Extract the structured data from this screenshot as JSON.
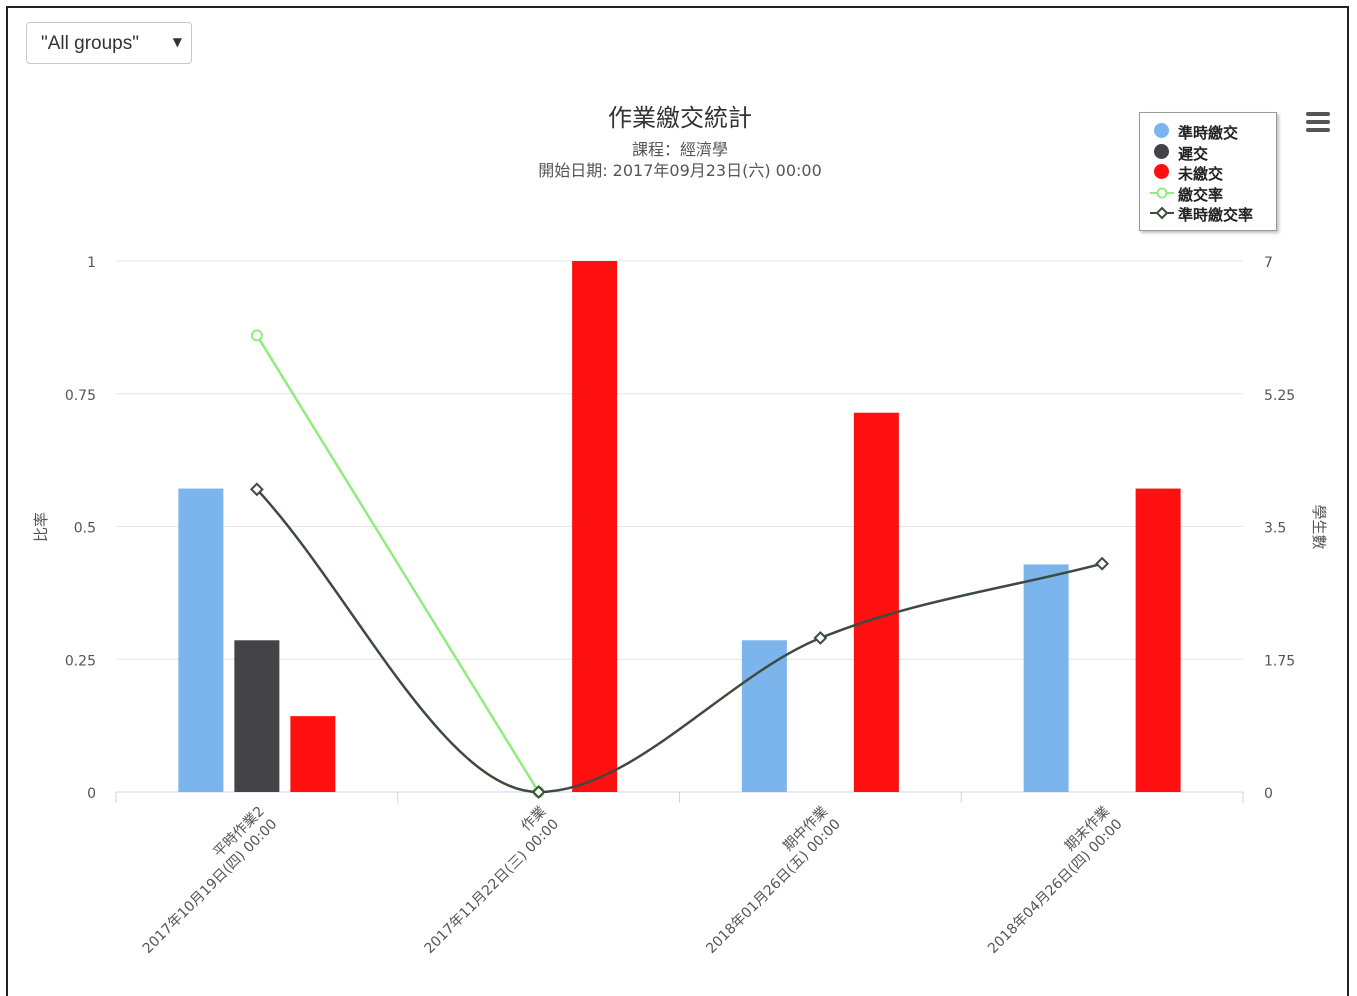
{
  "filter": {
    "selected": "\"All groups\""
  },
  "legend": {
    "items": [
      {
        "label": "準時繳交",
        "color": "#7cb5ec",
        "kind": "dot"
      },
      {
        "label": "遲交",
        "color": "#434348",
        "kind": "dot"
      },
      {
        "label": "未繳交",
        "color": "#ff1010",
        "kind": "dot"
      },
      {
        "label": "繳交率",
        "color": "#90ed7d",
        "kind": "line-circle"
      },
      {
        "label": "準時繳交率",
        "color": "#3d4a3d",
        "kind": "line-diamond"
      }
    ]
  },
  "menu": {
    "icon": "hamburger-menu-icon"
  },
  "chart_data": {
    "type": "bar",
    "title": "作業繳交統計",
    "subtitle_lines": [
      "課程：經濟學",
      "開始日期: 2017年09月23日(六) 00:00"
    ],
    "ylabel": "比率",
    "y2label": "學生數",
    "ylim": [
      0,
      1
    ],
    "y2lim": [
      0,
      7
    ],
    "yticks": [
      "0",
      "0.25",
      "0.5",
      "0.75",
      "1"
    ],
    "y2ticks": [
      "0",
      "1.75",
      "3.5",
      "5.25",
      "7"
    ],
    "categories": [
      {
        "name": "平時作業2",
        "date": "2017年10月19日(四) 00:00"
      },
      {
        "name": "作業",
        "date": "2017年11月22日(三) 00:00"
      },
      {
        "name": "期中作業",
        "date": "2018年01月26日(五) 00:00"
      },
      {
        "name": "期末作業",
        "date": "2018年04月26日(四) 00:00"
      }
    ],
    "series": [
      {
        "name": "準時繳交",
        "axis": "y2",
        "color": "#7cb5ec",
        "values": [
          4,
          0,
          2,
          3
        ]
      },
      {
        "name": "遲交",
        "axis": "y2",
        "color": "#434348",
        "values": [
          2,
          0,
          0,
          0
        ]
      },
      {
        "name": "未繳交",
        "axis": "y2",
        "color": "#ff1010",
        "values": [
          1,
          7,
          5,
          4
        ]
      },
      {
        "name": "繳交率",
        "axis": "y",
        "type": "line",
        "color": "#90ed7d",
        "values": [
          0.86,
          0,
          null,
          null
        ]
      },
      {
        "name": "準時繳交率",
        "axis": "y",
        "type": "line",
        "color": "#3d4a3d",
        "values": [
          0.57,
          0,
          0.29,
          0.43
        ]
      }
    ]
  }
}
